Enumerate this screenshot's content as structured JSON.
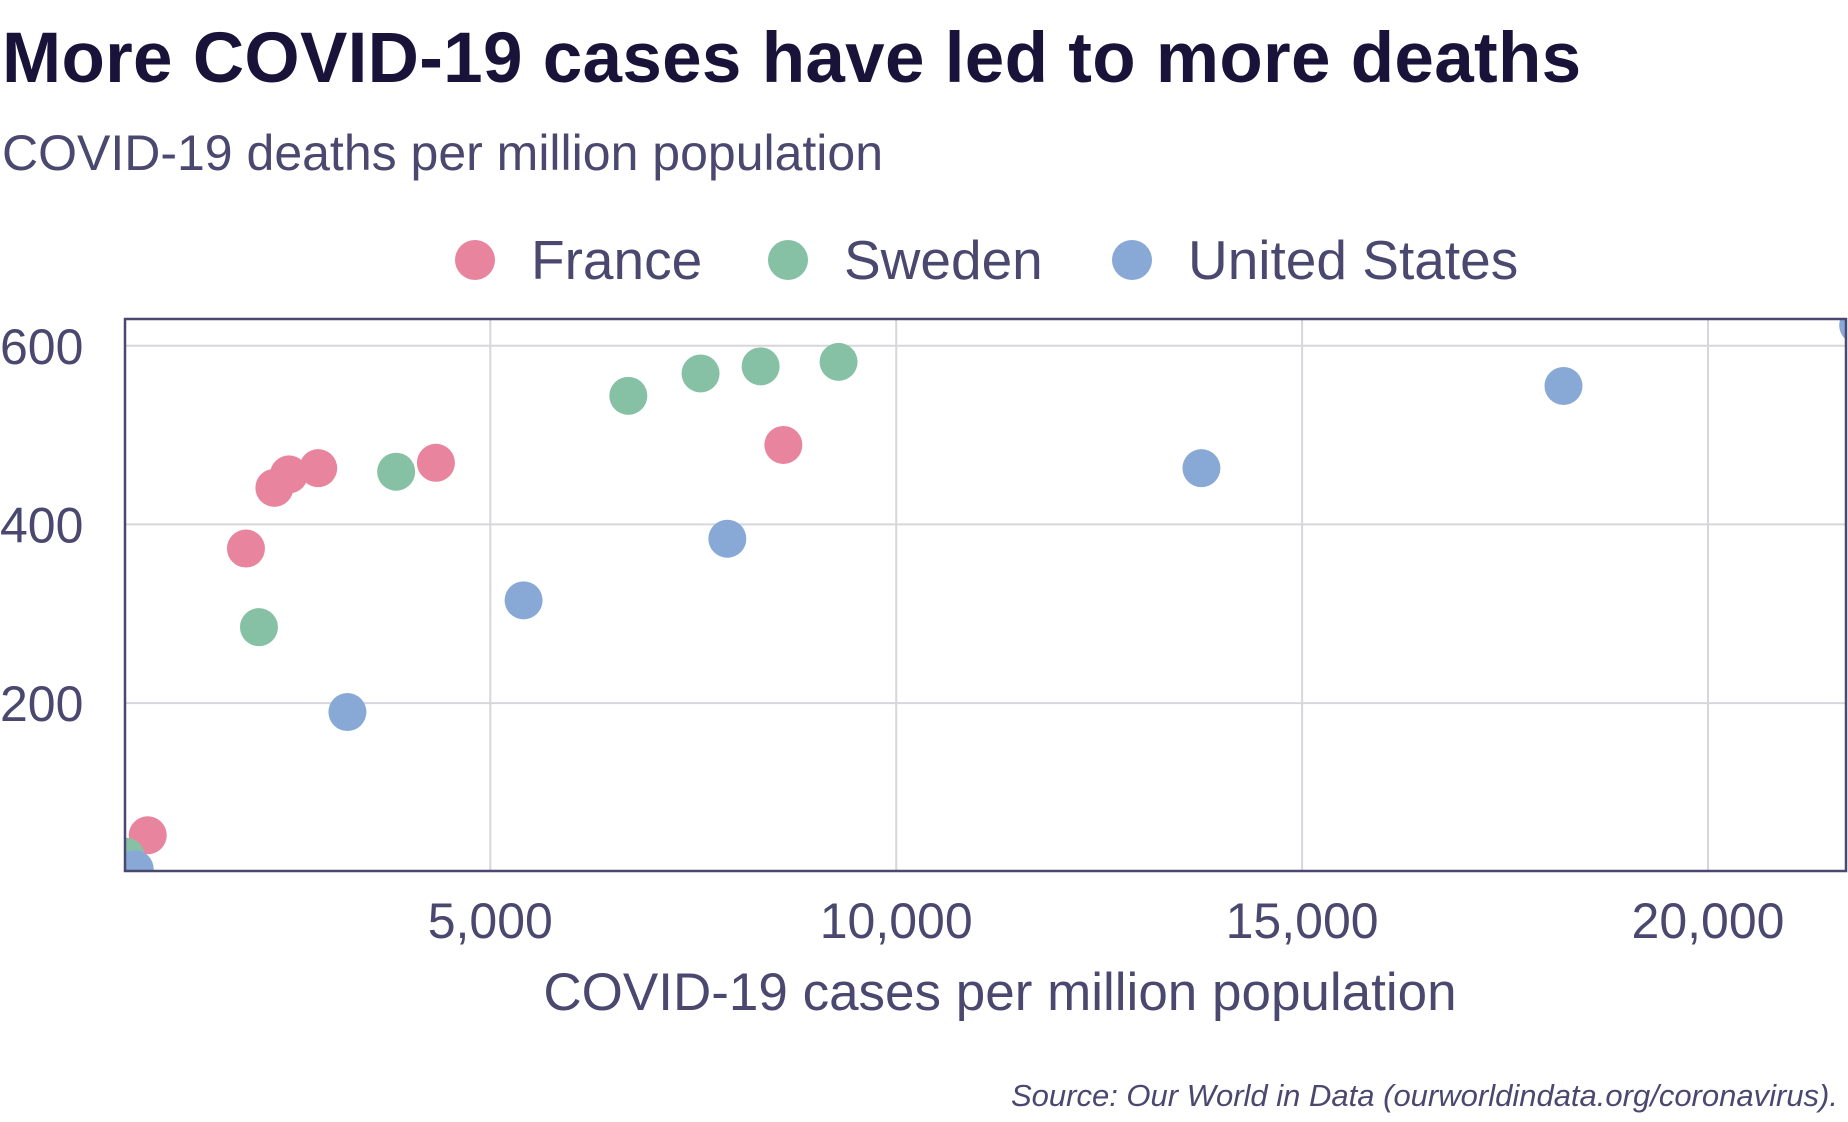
{
  "chart_data": {
    "type": "scatter",
    "title": "More COVID-19 cases have led to more deaths",
    "subtitle": "COVID-19 deaths per million population",
    "xlabel": "COVID-19 cases per million population",
    "ylabel": "",
    "xlim": [
      500,
      21700
    ],
    "ylim": [
      12,
      630
    ],
    "x_ticks": [
      5000,
      10000,
      15000,
      20000
    ],
    "x_tick_labels": [
      "5,000",
      "10,000",
      "15,000",
      "20,000"
    ],
    "y_ticks": [
      200,
      400,
      600
    ],
    "y_tick_labels": [
      "200",
      "400",
      "600"
    ],
    "grid": true,
    "legend_position": "top",
    "source": "Source: Our World in Data (ourworldindata.org/coronavirus).",
    "series": [
      {
        "name": "France",
        "color": "#e8849e",
        "points": [
          {
            "x": 780,
            "y": 52
          },
          {
            "x": 1990,
            "y": 373
          },
          {
            "x": 2340,
            "y": 441
          },
          {
            "x": 2520,
            "y": 456
          },
          {
            "x": 2880,
            "y": 463
          },
          {
            "x": 4330,
            "y": 469
          },
          {
            "x": 8610,
            "y": 489
          }
        ]
      },
      {
        "name": "Sweden",
        "color": "#86c1a6",
        "points": [
          {
            "x": 510,
            "y": 28
          },
          {
            "x": 2150,
            "y": 285
          },
          {
            "x": 3840,
            "y": 459
          },
          {
            "x": 6700,
            "y": 544
          },
          {
            "x": 7590,
            "y": 569
          },
          {
            "x": 8330,
            "y": 577
          },
          {
            "x": 9290,
            "y": 582
          }
        ]
      },
      {
        "name": "United States",
        "color": "#88a9d6",
        "points": [
          {
            "x": 620,
            "y": 14
          },
          {
            "x": 3240,
            "y": 190
          },
          {
            "x": 5410,
            "y": 315
          },
          {
            "x": 7920,
            "y": 384
          },
          {
            "x": 13760,
            "y": 463
          },
          {
            "x": 18220,
            "y": 555
          },
          {
            "x": 21850,
            "y": 623
          }
        ]
      }
    ]
  }
}
